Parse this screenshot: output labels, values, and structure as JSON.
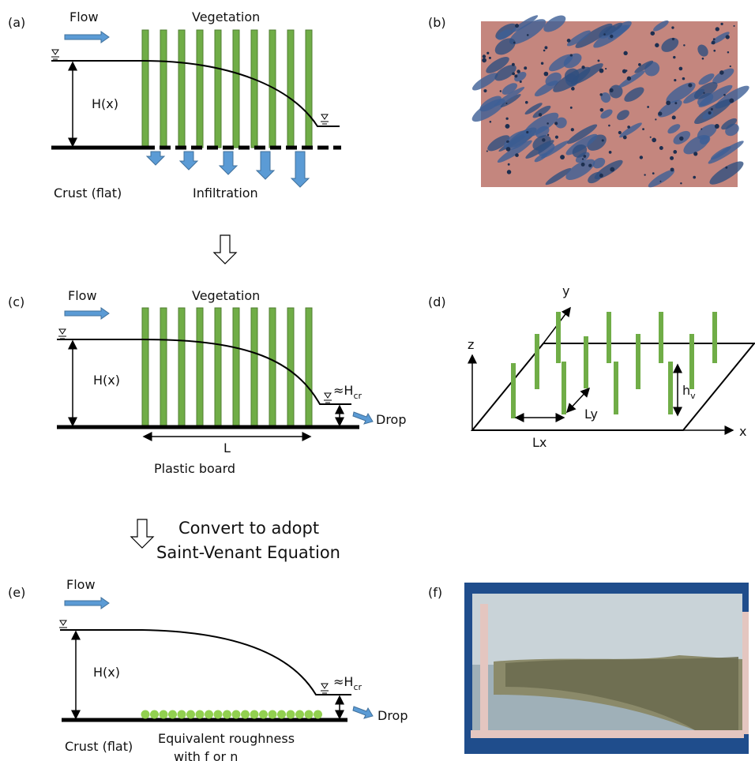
{
  "panels": {
    "a": {
      "label": "(a)",
      "flow": "Flow",
      "vegetation": "Vegetation",
      "depth": "H(x)",
      "ground": "Crust (flat)",
      "infiltration": "Infiltration"
    },
    "b": {
      "label": "(b)"
    },
    "c": {
      "label": "(c)",
      "flow": "Flow",
      "vegetation": "Vegetation",
      "depth": "H(x)",
      "critical": "≈H",
      "critical_sub": "cr",
      "drop": "Drop",
      "length": "L",
      "ground": "Plastic board"
    },
    "d": {
      "label": "(d)",
      "axis_y": "y",
      "axis_z": "z",
      "axis_x": "x",
      "spacing_x": "Lx",
      "spacing_y": "Ly",
      "height": "h",
      "height_sub": "v"
    },
    "e": {
      "label": "(e)",
      "flow": "Flow",
      "depth": "H(x)",
      "critical": "≈H",
      "critical_sub": "cr",
      "drop": "Drop",
      "ground": "Crust (flat)",
      "roughness_line1": "Equivalent roughness",
      "roughness_line2": "with f or n"
    },
    "f": {
      "label": "(f)"
    }
  },
  "conversion": {
    "line1": "Convert to adopt",
    "line2": "Saint-Venant Equation"
  }
}
